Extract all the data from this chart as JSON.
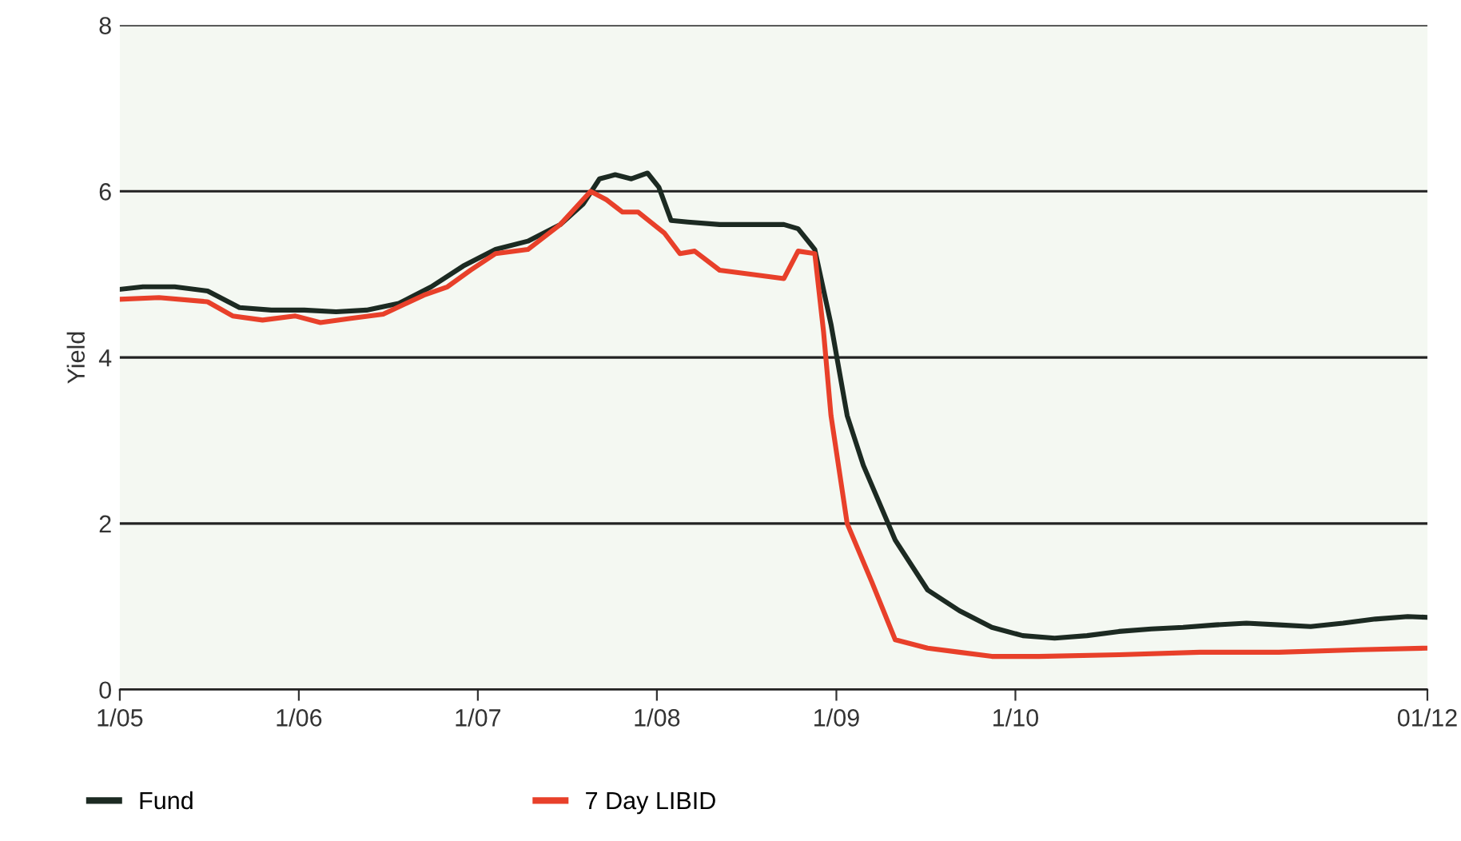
{
  "chart_data": {
    "type": "line",
    "ylabel": "Yield",
    "xlim": [
      "2005-01-01",
      "2012-04-20"
    ],
    "xticks": [
      {
        "value": "2005-01-01",
        "label": "1/05"
      },
      {
        "value": "2006-01-01",
        "label": "1/06"
      },
      {
        "value": "2007-01-01",
        "label": "1/07"
      },
      {
        "value": "2008-01-01",
        "label": "1/08"
      },
      {
        "value": "2009-01-01",
        "label": "1/09"
      },
      {
        "value": "2010-01-01",
        "label": "1/10"
      },
      {
        "value": "2012-04-20",
        "label": "01/12"
      }
    ],
    "ylim": [
      0,
      8
    ],
    "yticks": [
      0,
      2,
      4,
      6,
      8
    ],
    "grid": "y",
    "legend": "bottom",
    "marker": "none",
    "line_style": "solid",
    "series": [
      {
        "name": "Fund",
        "color": "#1c2a22",
        "x": [
          "2005-01-01",
          "2005-02-17",
          "2005-04-23",
          "2005-06-29",
          "2005-09-02",
          "2005-11-06",
          "2006-01-12",
          "2006-03-18",
          "2006-05-19",
          "2006-07-24",
          "2006-09-28",
          "2006-12-02",
          "2007-02-06",
          "2007-04-13",
          "2007-06-18",
          "2007-08-04",
          "2007-09-06",
          "2007-10-08",
          "2007-11-10",
          "2007-12-13",
          "2008-01-05",
          "2008-01-30",
          "2008-03-04",
          "2008-05-08",
          "2008-07-13",
          "2008-09-16",
          "2008-10-15",
          "2008-11-18",
          "2008-12-21",
          "2009-01-23",
          "2009-02-25",
          "2009-05-01",
          "2009-07-06",
          "2009-09-09",
          "2009-11-14",
          "2010-01-16",
          "2010-03-22",
          "2010-05-27",
          "2010-07-31",
          "2010-10-05",
          "2010-12-09",
          "2011-02-14",
          "2011-04-17",
          "2011-06-22",
          "2011-08-26",
          "2011-10-31",
          "2012-01-05",
          "2012-03-11",
          "2012-04-20"
        ],
        "values": [
          4.82,
          4.85,
          4.85,
          4.8,
          4.6,
          4.57,
          4.57,
          4.55,
          4.57,
          4.65,
          4.85,
          5.1,
          5.3,
          5.4,
          5.6,
          5.85,
          6.15,
          6.2,
          6.15,
          6.22,
          6.05,
          5.65,
          5.63,
          5.6,
          5.6,
          5.6,
          5.55,
          5.3,
          4.4,
          3.3,
          2.7,
          1.8,
          1.2,
          0.95,
          0.75,
          0.65,
          0.62,
          0.65,
          0.7,
          0.73,
          0.75,
          0.78,
          0.8,
          0.78,
          0.76,
          0.8,
          0.85,
          0.88,
          0.87
        ]
      },
      {
        "name": "7 Day LIBID",
        "color": "#e8402a",
        "x": [
          "2005-01-01",
          "2005-03-22",
          "2005-06-29",
          "2005-08-19",
          "2005-10-19",
          "2005-12-24",
          "2006-02-14",
          "2006-04-17",
          "2006-06-22",
          "2006-09-13",
          "2006-10-31",
          "2006-12-17",
          "2007-02-06",
          "2007-04-13",
          "2007-06-18",
          "2007-08-19",
          "2007-09-20",
          "2007-10-23",
          "2007-11-24",
          "2008-01-16",
          "2008-02-17",
          "2008-03-18",
          "2008-05-08",
          "2008-07-13",
          "2008-09-16",
          "2008-10-15",
          "2008-11-18",
          "2008-12-06",
          "2008-12-21",
          "2009-01-23",
          "2009-03-14",
          "2009-05-01",
          "2009-07-06",
          "2009-09-09",
          "2009-11-14",
          "2010-02-17",
          "2010-07-31",
          "2011-01-12",
          "2011-06-22",
          "2011-12-02",
          "2012-04-20"
        ],
        "values": [
          4.7,
          4.72,
          4.67,
          4.5,
          4.45,
          4.5,
          4.42,
          4.47,
          4.52,
          4.75,
          4.85,
          5.05,
          5.25,
          5.3,
          5.6,
          6.0,
          5.9,
          5.75,
          5.75,
          5.5,
          5.25,
          5.28,
          5.05,
          5.0,
          4.95,
          5.28,
          5.25,
          4.3,
          3.3,
          2.0,
          1.3,
          0.6,
          0.5,
          0.45,
          0.4,
          0.4,
          0.42,
          0.45,
          0.45,
          0.48,
          0.5
        ]
      }
    ]
  }
}
